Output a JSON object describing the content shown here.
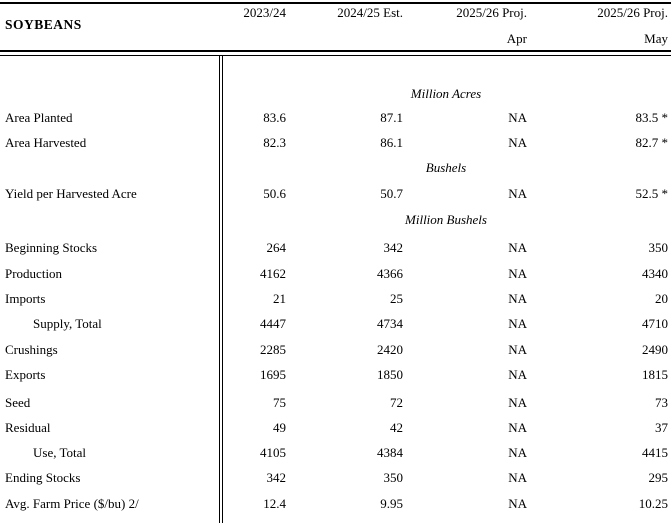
{
  "title": "SOYBEANS",
  "header": {
    "columns": [
      "2023/24",
      "2024/25 Est.",
      "2025/26 Proj.",
      "2025/26 Proj."
    ],
    "subheaders": [
      "",
      "",
      "Apr",
      "May"
    ]
  },
  "units_headings": [
    "Million Acres",
    "Bushels",
    "Million Bushels"
  ],
  "rows": [
    {
      "type": "section",
      "label": "Million Acres"
    },
    {
      "type": "data",
      "label": "Area Planted",
      "values": [
        "83.6",
        "87.1",
        "NA",
        "83.5 *"
      ]
    },
    {
      "type": "data",
      "label": "Area Harvested",
      "values": [
        "82.3",
        "86.1",
        "NA",
        "82.7 *"
      ]
    },
    {
      "type": "section",
      "label": "Bushels"
    },
    {
      "type": "data",
      "label": "Yield per Harvested Acre",
      "values": [
        "50.6",
        "50.7",
        "NA",
        "52.5 *"
      ]
    },
    {
      "type": "section",
      "label": "Million Bushels"
    },
    {
      "type": "data",
      "label": "Beginning Stocks",
      "values": [
        "264",
        "342",
        "NA",
        "350"
      ]
    },
    {
      "type": "data",
      "label": "Production",
      "values": [
        "4162",
        "4366",
        "NA",
        "4340"
      ]
    },
    {
      "type": "data",
      "label": "Imports",
      "values": [
        "21",
        "25",
        "NA",
        "20"
      ]
    },
    {
      "type": "data",
      "label": "Supply, Total",
      "indent": true,
      "values": [
        "4447",
        "4734",
        "NA",
        "4710"
      ]
    },
    {
      "type": "data",
      "label": "Crushings",
      "values": [
        "2285",
        "2420",
        "NA",
        "2490"
      ]
    },
    {
      "type": "data",
      "label": "Exports",
      "values": [
        "1695",
        "1850",
        "NA",
        "1815"
      ]
    },
    {
      "type": "data",
      "label": "Seed",
      "values": [
        "75",
        "72",
        "NA",
        "73"
      ]
    },
    {
      "type": "data",
      "label": "Residual",
      "values": [
        "49",
        "42",
        "NA",
        "37"
      ]
    },
    {
      "type": "data",
      "label": "Use, Total",
      "indent": true,
      "values": [
        "4105",
        "4384",
        "NA",
        "4415"
      ]
    },
    {
      "type": "data",
      "label": "Ending Stocks",
      "values": [
        "342",
        "350",
        "NA",
        "295"
      ]
    },
    {
      "type": "data",
      "label": "Avg. Farm Price ($/bu)  2/",
      "values": [
        "12.4",
        "9.95",
        "NA",
        "10.25"
      ]
    }
  ],
  "colors": {
    "text": "#000000",
    "background": "#ffffff",
    "rule": "#000000"
  }
}
